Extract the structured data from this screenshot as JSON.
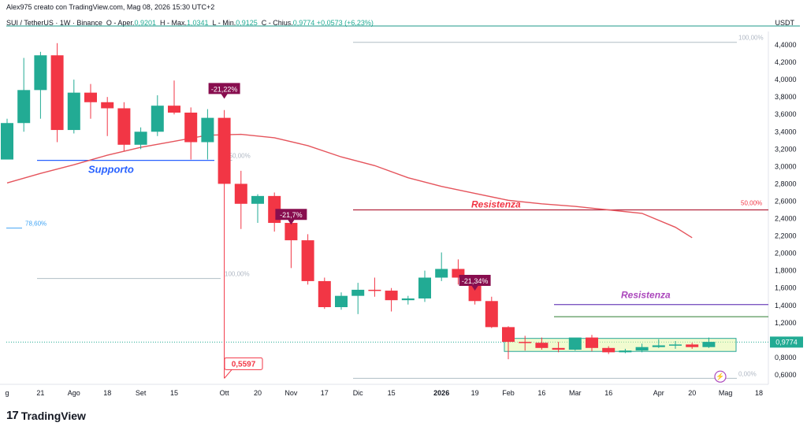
{
  "header": {
    "top_line": "Alex975 creato con TradingView.com, Mag 08, 2026 15:30 UTC+2",
    "symbol": "SUI / TetherUS · 1W · Binance",
    "ohlc": [
      {
        "k": "O - Aper.",
        "v": "0,9201"
      },
      {
        "k": "H - Max.",
        "v": "1,0341"
      },
      {
        "k": "L - Min.",
        "v": "0,9125"
      },
      {
        "k": "C - Chius.",
        "v": "0,9774 +0,0573 (+6,23%)"
      }
    ]
  },
  "currency": "USDT",
  "footer": {
    "brand": "TradingView"
  },
  "colors": {
    "up": "#22ab94",
    "down": "#f23645",
    "ma": "#e5545c",
    "support": "#2962ff",
    "resistance": "#b2243d",
    "range": "#7e57c2",
    "green_line": "#2e7d32"
  },
  "chart_data": {
    "type": "candlestick",
    "title": "",
    "y_ticks": [
      "4,4000",
      "4,2000",
      "4,0000",
      "3,8000",
      "3,6000",
      "3,4000",
      "3,2000",
      "3,0000",
      "2,8000",
      "2,6000",
      "2,4000",
      "2,2000",
      "2,0000",
      "1,8000",
      "1,6000",
      "1,4000",
      "1,2000",
      "1,0000",
      "0,8000",
      "0,6000"
    ],
    "y_tick_values": [
      4.4,
      4.2,
      4.0,
      3.8,
      3.6,
      3.4,
      3.2,
      3.0,
      2.8,
      2.6,
      2.4,
      2.2,
      2.0,
      1.8,
      1.6,
      1.4,
      1.2,
      1.0,
      0.8,
      0.6
    ],
    "ylim": [
      0.52,
      4.7
    ],
    "x_ticks": [
      {
        "label": "g",
        "week": 0
      },
      {
        "label": "21",
        "week": 2
      },
      {
        "label": "Ago",
        "week": 4
      },
      {
        "label": "18",
        "week": 6
      },
      {
        "label": "Set",
        "week": 8
      },
      {
        "label": "15",
        "week": 10
      },
      {
        "label": "Ott",
        "week": 13
      },
      {
        "label": "20",
        "week": 15
      },
      {
        "label": "Nov",
        "week": 17
      },
      {
        "label": "17",
        "week": 19
      },
      {
        "label": "Dic",
        "week": 21
      },
      {
        "label": "15",
        "week": 23
      },
      {
        "label": "2026",
        "week": 26,
        "bold": true
      },
      {
        "label": "19",
        "week": 28
      },
      {
        "label": "Feb",
        "week": 30
      },
      {
        "label": "16",
        "week": 32
      },
      {
        "label": "Mar",
        "week": 34
      },
      {
        "label": "16",
        "week": 36
      },
      {
        "label": "Apr",
        "week": 39
      },
      {
        "label": "20",
        "week": 41
      },
      {
        "label": "Mag",
        "week": 43
      },
      {
        "label": "18",
        "week": 45
      }
    ],
    "candles": [
      {
        "o": 3.08,
        "h": 3.55,
        "l": 3.08,
        "c": 3.5
      },
      {
        "o": 3.5,
        "h": 4.25,
        "l": 3.4,
        "c": 3.88
      },
      {
        "o": 3.88,
        "h": 4.32,
        "l": 3.55,
        "c": 4.28
      },
      {
        "o": 4.28,
        "h": 4.42,
        "l": 3.28,
        "c": 3.42
      },
      {
        "o": 3.42,
        "h": 4.0,
        "l": 3.38,
        "c": 3.85
      },
      {
        "o": 3.85,
        "h": 3.95,
        "l": 3.55,
        "c": 3.74
      },
      {
        "o": 3.74,
        "h": 3.8,
        "l": 3.35,
        "c": 3.67
      },
      {
        "o": 3.67,
        "h": 3.74,
        "l": 3.18,
        "c": 3.25
      },
      {
        "o": 3.25,
        "h": 3.45,
        "l": 3.2,
        "c": 3.4
      },
      {
        "o": 3.4,
        "h": 3.82,
        "l": 3.35,
        "c": 3.7
      },
      {
        "o": 3.7,
        "h": 3.99,
        "l": 3.6,
        "c": 3.62
      },
      {
        "o": 3.62,
        "h": 3.68,
        "l": 3.08,
        "c": 3.28
      },
      {
        "o": 3.28,
        "h": 3.66,
        "l": 3.08,
        "c": 3.56
      },
      {
        "o": 3.56,
        "h": 3.65,
        "l": 0.56,
        "c": 2.8
      },
      {
        "o": 2.8,
        "h": 2.95,
        "l": 2.28,
        "c": 2.57
      },
      {
        "o": 2.57,
        "h": 2.68,
        "l": 2.35,
        "c": 2.66
      },
      {
        "o": 2.66,
        "h": 2.7,
        "l": 2.25,
        "c": 2.35
      },
      {
        "o": 2.35,
        "h": 2.38,
        "l": 1.83,
        "c": 2.15
      },
      {
        "o": 2.15,
        "h": 2.22,
        "l": 1.64,
        "c": 1.68
      },
      {
        "o": 1.68,
        "h": 1.72,
        "l": 1.36,
        "c": 1.38
      },
      {
        "o": 1.38,
        "h": 1.55,
        "l": 1.35,
        "c": 1.51
      },
      {
        "o": 1.51,
        "h": 1.66,
        "l": 1.3,
        "c": 1.58
      },
      {
        "o": 1.58,
        "h": 1.72,
        "l": 1.5,
        "c": 1.57
      },
      {
        "o": 1.57,
        "h": 1.6,
        "l": 1.33,
        "c": 1.46
      },
      {
        "o": 1.46,
        "h": 1.51,
        "l": 1.41,
        "c": 1.48
      },
      {
        "o": 1.48,
        "h": 1.8,
        "l": 1.44,
        "c": 1.72
      },
      {
        "o": 1.72,
        "h": 2.01,
        "l": 1.68,
        "c": 1.82
      },
      {
        "o": 1.82,
        "h": 1.93,
        "l": 1.64,
        "c": 1.72
      },
      {
        "o": 1.72,
        "h": 1.73,
        "l": 1.41,
        "c": 1.45
      },
      {
        "o": 1.45,
        "h": 1.5,
        "l": 1.14,
        "c": 1.15
      },
      {
        "o": 1.15,
        "h": 1.16,
        "l": 0.78,
        "c": 0.98
      },
      {
        "o": 0.98,
        "h": 1.05,
        "l": 0.88,
        "c": 0.97
      },
      {
        "o": 0.97,
        "h": 1.03,
        "l": 0.89,
        "c": 0.91
      },
      {
        "o": 0.91,
        "h": 0.98,
        "l": 0.86,
        "c": 0.89
      },
      {
        "o": 0.89,
        "h": 1.02,
        "l": 0.88,
        "c": 1.03
      },
      {
        "o": 1.03,
        "h": 1.06,
        "l": 0.87,
        "c": 0.91
      },
      {
        "o": 0.91,
        "h": 0.93,
        "l": 0.84,
        "c": 0.86
      },
      {
        "o": 0.86,
        "h": 0.9,
        "l": 0.85,
        "c": 0.88
      },
      {
        "o": 0.88,
        "h": 0.96,
        "l": 0.86,
        "c": 0.92
      },
      {
        "o": 0.92,
        "h": 1.01,
        "l": 0.91,
        "c": 0.94
      },
      {
        "o": 0.94,
        "h": 0.99,
        "l": 0.9,
        "c": 0.95
      },
      {
        "o": 0.95,
        "h": 0.97,
        "l": 0.9,
        "c": 0.92
      },
      {
        "o": 0.92,
        "h": 1.03,
        "l": 0.91,
        "c": 0.98
      }
    ],
    "moving_average": {
      "weeks": [
        0,
        2,
        4,
        6,
        8,
        10,
        12,
        14,
        16,
        18,
        20,
        22,
        24,
        26,
        28,
        30,
        32,
        34,
        36,
        38,
        40,
        41
      ],
      "values": [
        2.81,
        2.92,
        3.02,
        3.13,
        3.22,
        3.29,
        3.36,
        3.37,
        3.33,
        3.24,
        3.11,
        3.01,
        2.87,
        2.77,
        2.69,
        2.61,
        2.57,
        2.54,
        2.5,
        2.46,
        2.3,
        2.18
      ]
    },
    "annotations": {
      "supporto": {
        "label": "Supporto",
        "value": 3.07
      },
      "resistenza_red": {
        "label": "Resistenza",
        "value": 2.5,
        "pct": "50,00%"
      },
      "resistenza_purple": {
        "label": "Resistenza",
        "value": 1.41
      },
      "green_level": 1.27,
      "range_box": {
        "top": 1.02,
        "bottom": 0.87
      },
      "fib": [
        {
          "label": "100,00%",
          "value": 4.43
        },
        {
          "label": "50,00%",
          "value": 3.07
        },
        {
          "label": "78,60%",
          "value": 2.29
        },
        {
          "label": "100,00%",
          "value": 1.71
        },
        {
          "label": "0,00%",
          "value": 0.56
        }
      ],
      "drops": [
        {
          "label": "-21,22%",
          "week": 13,
          "value": 3.78
        },
        {
          "label": "-21,7%",
          "week": 17,
          "value": 2.33
        },
        {
          "label": "-21,34%",
          "week": 28,
          "value": 1.57
        }
      ],
      "low_label": "0,5597",
      "last_price": "0,9774"
    }
  }
}
